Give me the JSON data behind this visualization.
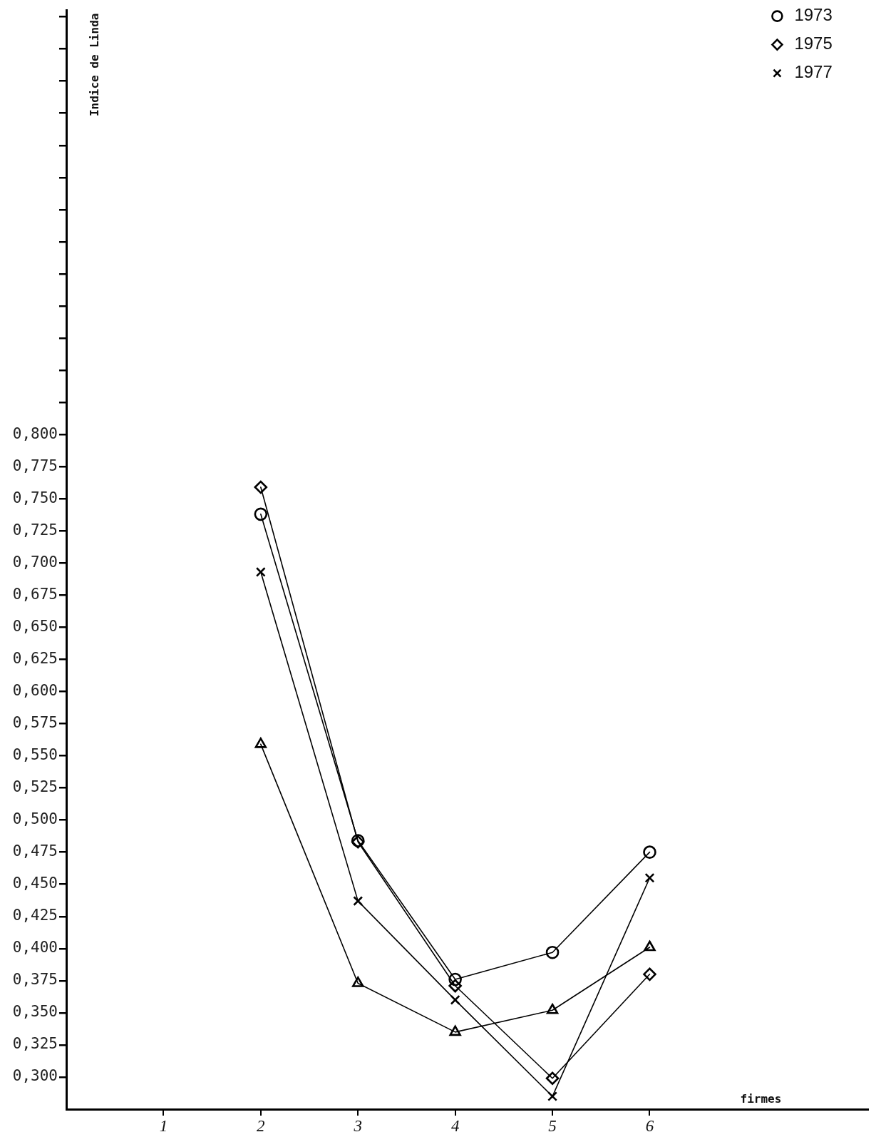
{
  "chart_data": {
    "type": "line",
    "ylabel": "Indice de Linda",
    "xlabel": "firmes",
    "legend": "top right",
    "x": [
      2,
      3,
      4,
      5,
      6
    ],
    "series": [
      {
        "color": "#000000",
        "marker": "triangle",
        "values": [
          0.559,
          0.373,
          0.335,
          0.352,
          0.401
        ]
      },
      {
        "name": "1973",
        "color": "#000000",
        "marker": "circle",
        "values": [
          0.738,
          0.484,
          0.376,
          0.397,
          0.475
        ]
      },
      {
        "name": "1975",
        "color": "#000000",
        "marker": "diamond",
        "values": [
          0.759,
          0.483,
          0.371,
          0.299,
          0.38
        ]
      },
      {
        "name": "1977",
        "color": "#000000",
        "marker": "cross",
        "values": [
          0.693,
          0.437,
          0.36,
          0.285,
          0.455
        ]
      }
    ],
    "xlim": [
      0,
      8.25
    ],
    "xticks": [
      1,
      2,
      3,
      4,
      5,
      6
    ],
    "ylim": [
      0.275,
      1.13
    ],
    "yticks": [
      {
        "value": 0.3,
        "label": "0,300"
      },
      {
        "value": 0.325,
        "label": "0,325"
      },
      {
        "value": 0.35,
        "label": "0,350"
      },
      {
        "value": 0.375,
        "label": "0,375"
      },
      {
        "value": 0.4,
        "label": "0,400"
      },
      {
        "value": 0.425,
        "label": "0,425"
      },
      {
        "value": 0.45,
        "label": "0,450"
      },
      {
        "value": 0.475,
        "label": "0,475"
      },
      {
        "value": 0.5,
        "label": "0,500"
      },
      {
        "value": 0.525,
        "label": "0,525"
      },
      {
        "value": 0.55,
        "label": "0,550"
      },
      {
        "value": 0.575,
        "label": "0,575"
      },
      {
        "value": 0.6,
        "label": "0,600"
      },
      {
        "value": 0.625,
        "label": "0,625"
      },
      {
        "value": 0.65,
        "label": "0,650"
      },
      {
        "value": 0.675,
        "label": "0,675"
      },
      {
        "value": 0.7,
        "label": "0,700"
      },
      {
        "value": 0.725,
        "label": "0,725"
      },
      {
        "value": 0.75,
        "label": "0,750"
      },
      {
        "value": 0.775,
        "label": "0,775"
      },
      {
        "value": 0.8,
        "label": "0,800"
      },
      {
        "value": 0.825,
        "label": null
      },
      {
        "value": 0.85,
        "label": null
      },
      {
        "value": 0.875,
        "label": null
      },
      {
        "value": 0.9,
        "label": null
      },
      {
        "value": 0.925,
        "label": null
      },
      {
        "value": 0.95,
        "label": null
      },
      {
        "value": 0.975,
        "label": null
      },
      {
        "value": 1,
        "label": null
      },
      {
        "value": 1.025,
        "label": null
      },
      {
        "value": 1.05,
        "label": null
      },
      {
        "value": 1.075,
        "label": null
      },
      {
        "value": 1.1,
        "label": null
      },
      {
        "value": 1.125,
        "label": null
      }
    ]
  }
}
